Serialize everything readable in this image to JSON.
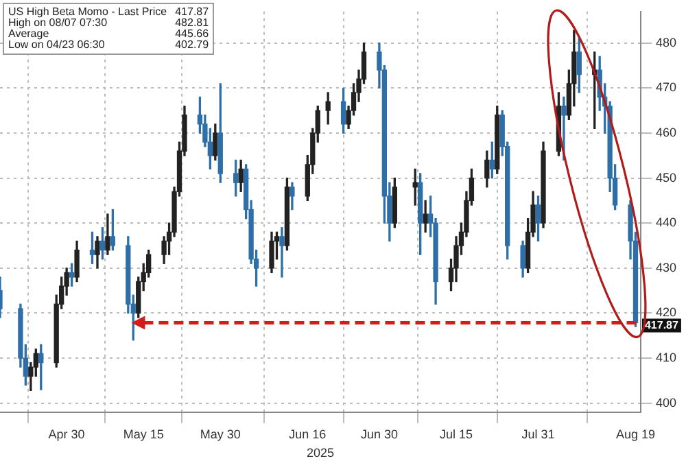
{
  "chart_data": {
    "type": "candlestick",
    "xlabel": "2025",
    "annotations": [
      "US High Beta Momo - Last Price 417.87",
      "High on 08/07 07:30 482.81",
      "Average 445.66",
      "Low on 04/23 06:30 402.79"
    ],
    "ref_lines": [
      {
        "axis": "y",
        "value": 417.87,
        "label": "417.87",
        "color": "#d41c1c",
        "line_style": "dashed"
      }
    ],
    "x": [
      "2025-04-17",
      "2025-04-21",
      "2025-04-22",
      "2025-04-23",
      "2025-04-24",
      "2025-04-25",
      "2025-04-28",
      "2025-04-29",
      "2025-04-30",
      "2025-05-01",
      "2025-05-02",
      "2025-05-05",
      "2025-05-06",
      "2025-05-07",
      "2025-05-08",
      "2025-05-09",
      "2025-05-12",
      "2025-05-13",
      "2025-05-14",
      "2025-05-15",
      "2025-05-16",
      "2025-05-19",
      "2025-05-20",
      "2025-05-21",
      "2025-05-22",
      "2025-05-23",
      "2025-05-26",
      "2025-05-27",
      "2025-05-28",
      "2025-05-29",
      "2025-05-30",
      "2025-06-02",
      "2025-06-03",
      "2025-06-04",
      "2025-06-05",
      "2025-06-06",
      "2025-06-09",
      "2025-06-10",
      "2025-06-11",
      "2025-06-12",
      "2025-06-13",
      "2025-06-16",
      "2025-06-17",
      "2025-06-18",
      "2025-06-20",
      "2025-06-23",
      "2025-06-24",
      "2025-06-25",
      "2025-06-26",
      "2025-06-27",
      "2025-06-30",
      "2025-07-01",
      "2025-07-02",
      "2025-07-03",
      "2025-07-07",
      "2025-07-08",
      "2025-07-09",
      "2025-07-10",
      "2025-07-11",
      "2025-07-14",
      "2025-07-15",
      "2025-07-16",
      "2025-07-17",
      "2025-07-18",
      "2025-07-21",
      "2025-07-22",
      "2025-07-23",
      "2025-07-24",
      "2025-07-25",
      "2025-07-28",
      "2025-07-29",
      "2025-07-30",
      "2025-07-31",
      "2025-08-01",
      "2025-08-04",
      "2025-08-05",
      "2025-08-06",
      "2025-08-07",
      "2025-08-08",
      "2025-08-11",
      "2025-08-12",
      "2025-08-13",
      "2025-08-14",
      "2025-08-15",
      "2025-08-18",
      "2025-08-19"
    ],
    "series": [
      {
        "colors": [
          "#2f6fa8",
          "#2f6fa8",
          "#2f6fa8",
          "#222222",
          "#222222",
          "#2f6fa8",
          "#222222",
          "#222222",
          "#222222",
          "#2f6fa8",
          "#222222",
          "#2f6fa8",
          "#222222",
          "#2f6fa8",
          "#222222",
          "#2f6fa8",
          "#2f6fa8",
          "#2f6fa8",
          "#222222",
          "#222222",
          "#222222",
          "#222222",
          "#222222",
          "#222222",
          "#222222",
          "#222222",
          "#2f6fa8",
          "#2f6fa8",
          "#2f6fa8",
          "#222222",
          "#2f6fa8",
          "#2f6fa8",
          "#222222",
          "#2f6fa8",
          "#2f6fa8",
          "#2f6fa8",
          "#222222",
          "#222222",
          "#2f6fa8",
          "#222222",
          "#2f6fa8",
          "#222222",
          "#222222",
          "#222222",
          "#222222",
          "#2f6fa8",
          "#222222",
          "#222222",
          "#222222",
          "#222222",
          "#2f6fa8",
          "#2f6fa8",
          "#2f6fa8",
          "#222222",
          "#222222",
          "#2f6fa8",
          "#222222",
          "#2f6fa8",
          "#2f6fa8",
          "#222222",
          "#222222",
          "#222222",
          "#222222",
          "#222222",
          "#222222",
          "#2f6fa8",
          "#222222",
          "#2f6fa8",
          "#2f6fa8",
          "#2f6fa8",
          "#222222",
          "#222222",
          "#2f6fa8",
          "#222222",
          "#222222",
          "#2f6fa8",
          "#222222",
          "#222222",
          "#2f6fa8",
          "#222222",
          "#2f6fa8",
          "#2f6fa8",
          "#2f6fa8",
          "#2f6fa8",
          "#2f6fa8",
          "#2f6fa8"
        ],
        "ohlc": [
          [
            425,
            428,
            419,
            421
          ],
          [
            421,
            422,
            408,
            410
          ],
          [
            410,
            413,
            404,
            406
          ],
          [
            406,
            409,
            402.79,
            408
          ],
          [
            408,
            412,
            406,
            411
          ],
          [
            411,
            413,
            403,
            409
          ],
          [
            409,
            424,
            408,
            422
          ],
          [
            422,
            428,
            421,
            426
          ],
          [
            426,
            430,
            424,
            429
          ],
          [
            429,
            431,
            426,
            428
          ],
          [
            428,
            436,
            427,
            434
          ],
          [
            434,
            438,
            431,
            433
          ],
          [
            433,
            437,
            430,
            436
          ],
          [
            436,
            439,
            432,
            434
          ],
          [
            434,
            442,
            433,
            437
          ],
          [
            437,
            443,
            434,
            435
          ],
          [
            435,
            437,
            420,
            422
          ],
          [
            422,
            424,
            414,
            420
          ],
          [
            420,
            428,
            419,
            427
          ],
          [
            427,
            431,
            425,
            429
          ],
          [
            429,
            434,
            428,
            433
          ],
          [
            433,
            437,
            431,
            436
          ],
          [
            436,
            440,
            433,
            438
          ],
          [
            438,
            448,
            437,
            447
          ],
          [
            447,
            458,
            446,
            456
          ],
          [
            456,
            466,
            455,
            464
          ],
          [
            464,
            468,
            460,
            462
          ],
          [
            462,
            464,
            457,
            458
          ],
          [
            458,
            461,
            452,
            455
          ],
          [
            455,
            462,
            454,
            460
          ],
          [
            460,
            471,
            449,
            451
          ],
          [
            451,
            454,
            446,
            449
          ],
          [
            449,
            454,
            447,
            452
          ],
          [
            452,
            453,
            441,
            443
          ],
          [
            443,
            445,
            431,
            432
          ],
          [
            432,
            434,
            426,
            430
          ],
          [
            430,
            438,
            429,
            436
          ],
          [
            436,
            438,
            432,
            437
          ],
          [
            437,
            439,
            428,
            435
          ],
          [
            435,
            450,
            434,
            448
          ],
          [
            448,
            449,
            443,
            446
          ],
          [
            446,
            455,
            445,
            453
          ],
          [
            453,
            461,
            451,
            460
          ],
          [
            460,
            466,
            458,
            465
          ],
          [
            465,
            469,
            462,
            467
          ],
          [
            467,
            470,
            460,
            462
          ],
          [
            462,
            466,
            461,
            465
          ],
          [
            465,
            471,
            464,
            469
          ],
          [
            469,
            474,
            467,
            472
          ],
          [
            472,
            480,
            471,
            478
          ],
          [
            478,
            480,
            470,
            474
          ],
          [
            474,
            475,
            440,
            446
          ],
          [
            446,
            449,
            436,
            440
          ],
          [
            440,
            450,
            439,
            448
          ],
          [
            448,
            452,
            444,
            449
          ],
          [
            449,
            451,
            433,
            440
          ],
          [
            440,
            445,
            438,
            442
          ],
          [
            442,
            446,
            437,
            440
          ],
          [
            440,
            441,
            422,
            427
          ],
          [
            427,
            432,
            425,
            430
          ],
          [
            430,
            437,
            427,
            435
          ],
          [
            435,
            440,
            433,
            438
          ],
          [
            438,
            447,
            437,
            445
          ],
          [
            445,
            452,
            444,
            450
          ],
          [
            450,
            456,
            448,
            454
          ],
          [
            454,
            458,
            450,
            452
          ],
          [
            452,
            466,
            451,
            464
          ],
          [
            464,
            465,
            455,
            457
          ],
          [
            457,
            458,
            432,
            435
          ],
          [
            435,
            436,
            428,
            430
          ],
          [
            430,
            441,
            429,
            438
          ],
          [
            438,
            447,
            437,
            444
          ],
          [
            444,
            446,
            436,
            440
          ],
          [
            440,
            458,
            439,
            456
          ],
          [
            456,
            469,
            455,
            466
          ],
          [
            466,
            468,
            454,
            464
          ],
          [
            464,
            474,
            463,
            471
          ],
          [
            471,
            482.81,
            466,
            478
          ],
          [
            478,
            481,
            469,
            473
          ],
          [
            473,
            478,
            461,
            474
          ],
          [
            474,
            477,
            465,
            468
          ],
          [
            468,
            471,
            460,
            466
          ],
          [
            466,
            467,
            447,
            450
          ],
          [
            450,
            453,
            443,
            444
          ],
          [
            444,
            445,
            432,
            436
          ],
          [
            436,
            438,
            417,
            417.87
          ]
        ]
      }
    ],
    "xlim": [
      "2025-04-17",
      "2025-08-20"
    ],
    "xticks": [
      {
        "value": "2025-04-30",
        "label": "Apr 30"
      },
      {
        "value": "2025-05-15",
        "label": "May 15"
      },
      {
        "value": "2025-05-30",
        "label": "May 30"
      },
      {
        "value": "2025-06-16",
        "label": "Jun 16"
      },
      {
        "value": "2025-06-30",
        "label": "Jun 30"
      },
      {
        "value": "2025-07-15",
        "label": "Jul 15"
      },
      {
        "value": "2025-07-31",
        "label": "Jul 31"
      },
      {
        "value": "2025-08-19",
        "label": "Aug 19"
      }
    ],
    "ylim": [
      398,
      487
    ],
    "yticks": [
      400,
      410,
      420,
      430,
      440,
      450,
      460,
      470,
      480
    ],
    "grid": true
  }
}
